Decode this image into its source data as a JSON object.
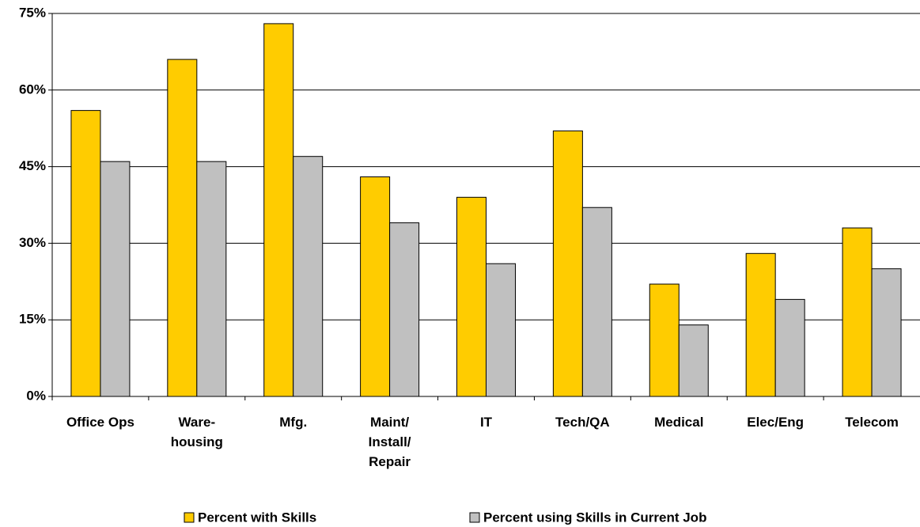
{
  "chart_data": {
    "type": "bar",
    "categories": [
      "Office Ops",
      "Ware-\nhousing",
      "Mfg.",
      "Maint/\nInstall/\nRepair",
      "IT",
      "Tech/QA",
      "Medical",
      "Elec/Eng",
      "Telecom"
    ],
    "series": [
      {
        "name": "Percent with Skills",
        "color": "#FFCC00",
        "values": [
          56,
          66,
          73,
          43,
          39,
          52,
          22,
          28,
          33
        ]
      },
      {
        "name": "Percent using Skills in Current Job",
        "color": "#C0C0C0",
        "values": [
          46,
          46,
          47,
          34,
          26,
          37,
          14,
          19,
          25
        ]
      }
    ],
    "ylim": [
      0,
      75
    ],
    "yticks": [
      {
        "value": 0,
        "label": "0%"
      },
      {
        "value": 15,
        "label": "15%"
      },
      {
        "value": 30,
        "label": "30%"
      },
      {
        "value": 45,
        "label": "45%"
      },
      {
        "value": 60,
        "label": "60%"
      },
      {
        "value": 75,
        "label": "75%"
      }
    ],
    "grid": true,
    "legend": "bottom"
  }
}
